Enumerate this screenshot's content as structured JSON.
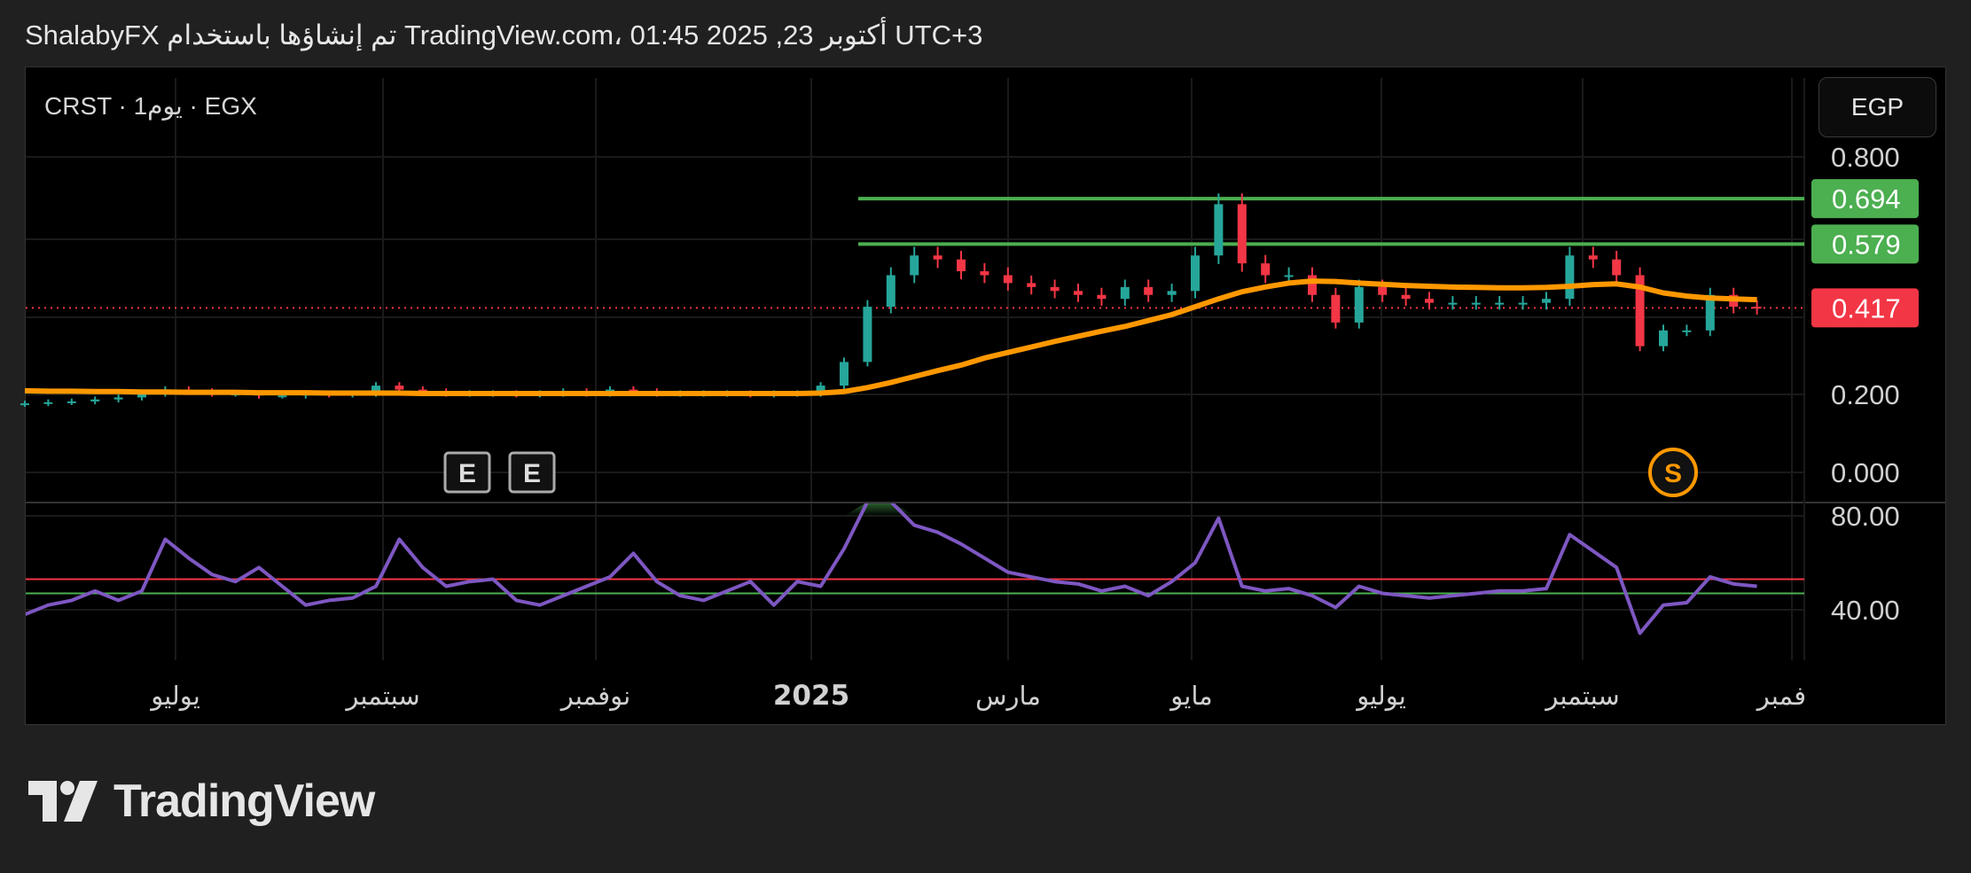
{
  "header": {
    "attribution": "ShalabyFX تم إنشاؤها باستخدام TradingView.com، أكتوبر 23, 2025 01:45 UTC+3"
  },
  "legend": {
    "symbol_line": "CRST · 1يوم · EGX"
  },
  "currency_button": "EGP",
  "logo": {
    "text": "TradingView"
  },
  "colors": {
    "up": "#26a69a",
    "down": "#f23645",
    "ma": "#ff9800",
    "level_lines": "#4caf50",
    "rsi": "#7e57c2",
    "rsi_upper": "#f23645",
    "rsi_lower": "#4caf50",
    "last_price": "#f23645"
  },
  "chart_data": [
    {
      "type": "candlestick",
      "interval": "1D (shown here as weekly samples)",
      "y_ticks": [
        "0.800",
        "0.200",
        "0.000"
      ],
      "ylim": [
        0,
        0.8
      ],
      "x_tick_labels": [
        "يوليو",
        "سبتمبر",
        "نوفمبر",
        "2025",
        "مارس",
        "مايو",
        "يوليو",
        "سبتمبر",
        "نوفمبر"
      ],
      "x_start": "2024-05-13",
      "x_step_days": 7,
      "close": [
        0.175,
        0.178,
        0.18,
        0.185,
        0.19,
        0.2,
        0.21,
        0.205,
        0.2,
        0.2,
        0.195,
        0.195,
        0.2,
        0.198,
        0.2,
        0.22,
        0.21,
        0.205,
        0.2,
        0.2,
        0.2,
        0.198,
        0.2,
        0.205,
        0.2,
        0.21,
        0.205,
        0.2,
        0.2,
        0.2,
        0.2,
        0.198,
        0.2,
        0.2,
        0.22,
        0.28,
        0.42,
        0.5,
        0.55,
        0.54,
        0.51,
        0.5,
        0.48,
        0.47,
        0.46,
        0.45,
        0.44,
        0.47,
        0.45,
        0.46,
        0.55,
        0.68,
        0.53,
        0.5,
        0.5,
        0.45,
        0.38,
        0.47,
        0.45,
        0.44,
        0.43,
        0.43,
        0.43,
        0.43,
        0.43,
        0.44,
        0.55,
        0.54,
        0.5,
        0.32,
        0.36,
        0.36,
        0.45,
        0.42,
        0.417
      ],
      "moving_average": [
        0.207,
        0.206,
        0.206,
        0.205,
        0.205,
        0.204,
        0.204,
        0.203,
        0.203,
        0.203,
        0.202,
        0.202,
        0.202,
        0.201,
        0.201,
        0.201,
        0.201,
        0.2,
        0.2,
        0.2,
        0.2,
        0.2,
        0.2,
        0.2,
        0.2,
        0.2,
        0.2,
        0.2,
        0.2,
        0.2,
        0.2,
        0.2,
        0.2,
        0.2,
        0.201,
        0.205,
        0.215,
        0.228,
        0.243,
        0.258,
        0.272,
        0.29,
        0.304,
        0.318,
        0.332,
        0.345,
        0.358,
        0.37,
        0.385,
        0.4,
        0.42,
        0.44,
        0.458,
        0.47,
        0.48,
        0.485,
        0.484,
        0.48,
        0.477,
        0.474,
        0.472,
        0.47,
        0.469,
        0.468,
        0.468,
        0.469,
        0.472,
        0.476,
        0.478,
        0.47,
        0.455,
        0.447,
        0.442,
        0.44,
        0.438
      ],
      "horizontal_levels": [
        0.694,
        0.579
      ],
      "last_price": 0.417,
      "price_labels": [
        "0.694",
        "0.579",
        "0.417"
      ],
      "events": [
        {
          "label": "E",
          "week": 19
        },
        {
          "label": "E",
          "week": 22
        },
        {
          "label": "S",
          "week": 70
        }
      ]
    },
    {
      "type": "line",
      "indicator": "RSI",
      "y_ticks": [
        "80.00",
        "40.00"
      ],
      "upper_band": 53,
      "lower_band": 47,
      "values": [
        38,
        42,
        44,
        48,
        44,
        48,
        70,
        62,
        55,
        52,
        58,
        50,
        42,
        44,
        45,
        50,
        70,
        58,
        50,
        52,
        53,
        44,
        42,
        46,
        50,
        54,
        64,
        52,
        46,
        44,
        48,
        52,
        42,
        52,
        50,
        66,
        86,
        86,
        76,
        73,
        68,
        62,
        56,
        54,
        52,
        51,
        48,
        50,
        46,
        52,
        60,
        79,
        50,
        48,
        49,
        46,
        41,
        50,
        47,
        46,
        45,
        46,
        47,
        48,
        48,
        49,
        72,
        65,
        58,
        30,
        42,
        43,
        54,
        51,
        50
      ]
    }
  ]
}
